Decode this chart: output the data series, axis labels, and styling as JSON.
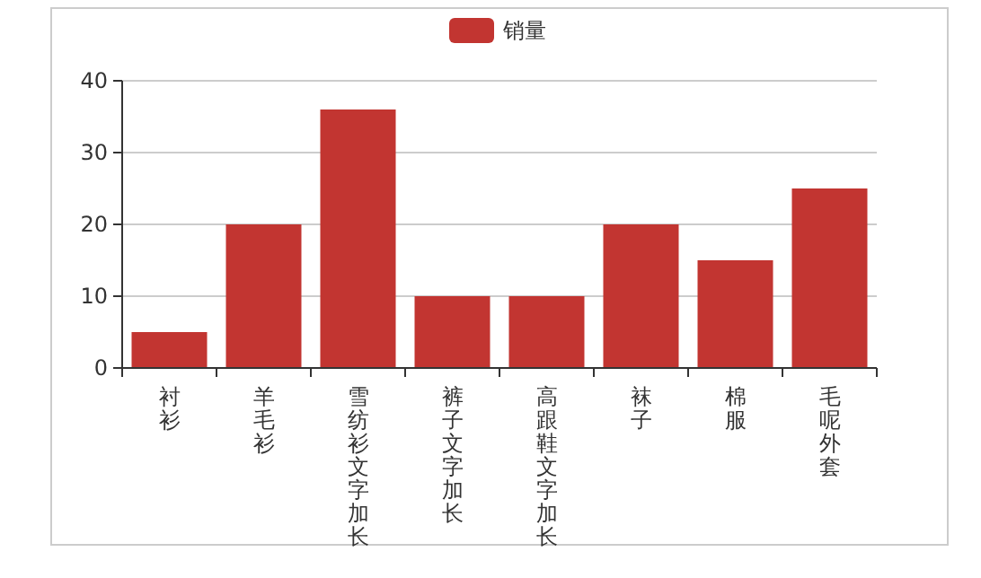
{
  "chart_data": {
    "type": "bar",
    "categories": [
      "衬衫",
      "羊毛衫",
      "雪纺衫文字加长",
      "裤子文字加长",
      "高跟鞋文字加长",
      "袜子",
      "棉服",
      "毛呢外套"
    ],
    "series": [
      {
        "name": "销量",
        "color": "#c23531",
        "values": [
          5,
          20,
          36,
          10,
          10,
          20,
          15,
          25
        ]
      }
    ],
    "ylim": [
      0,
      40
    ],
    "yticks": [
      0,
      10,
      20,
      30,
      40
    ],
    "grid": "y",
    "legend": "top"
  }
}
